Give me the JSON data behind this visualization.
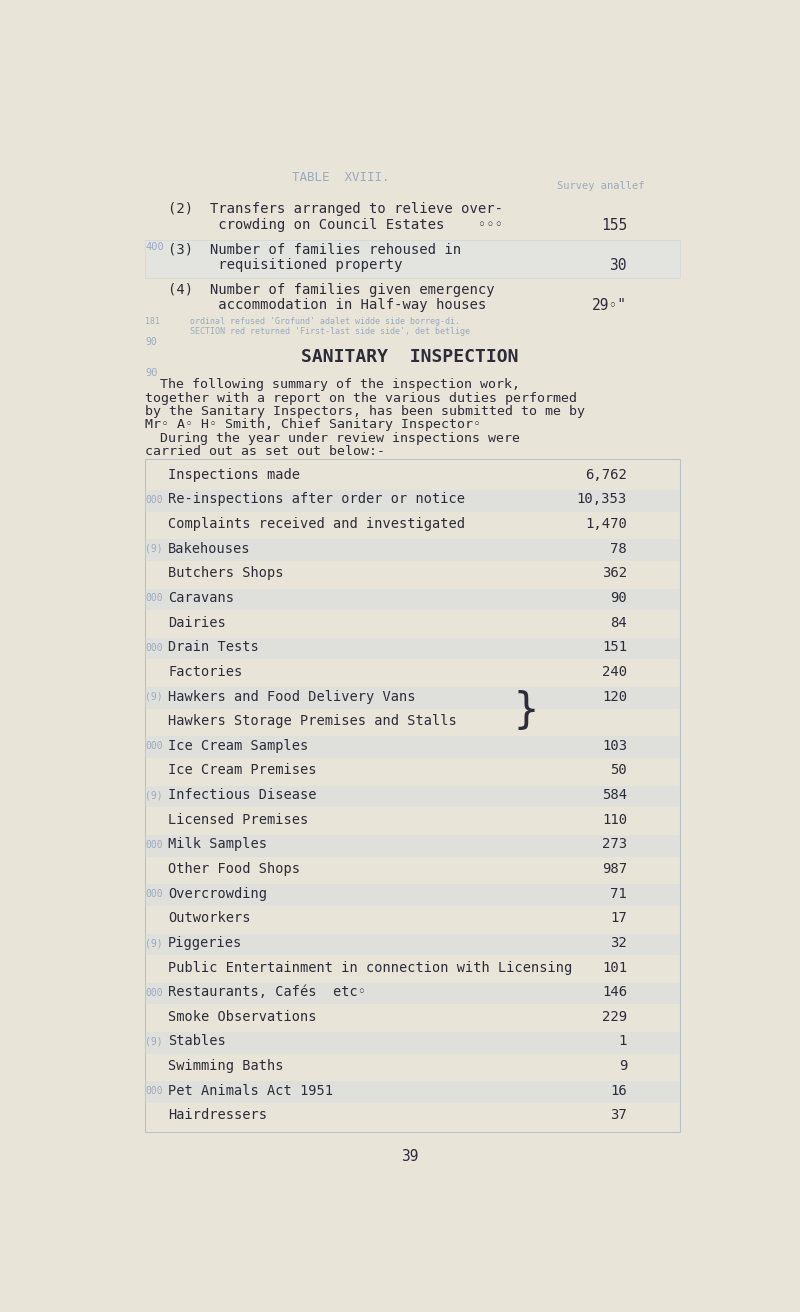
{
  "bg_color": "#e8e4d8",
  "text_color": "#2c2c3a",
  "faded_color": "#9aabbf",
  "page_number": "39",
  "top_header_faded": "TABLE  XVIII.",
  "top_right_faded": "Survey anallef",
  "section_title": "SANITARY  INSPECTION",
  "para1_lines": [
    "The following summary of the inspection work,",
    "together with a report on the various duties performed",
    "by the Sanitary Inspectors, has been submitted to me by",
    "Mr◦ A◦ H◦ Smith, Chief Sanitary Inspector◦"
  ],
  "para2_lines": [
    "During the year under review inspections were",
    "carried out as set out below:-"
  ],
  "inspection_items": [
    {
      "label": "Inspections made",
      "value": "6,762"
    },
    {
      "label": "Re-inspections after order or notice",
      "value": "10,353"
    },
    {
      "label": "Complaints received and investigated",
      "value": "1,470"
    },
    {
      "label": "Bakehouses",
      "value": "78"
    },
    {
      "label": "Butchers Shops",
      "value": "362"
    },
    {
      "label": "Caravans",
      "value": "90"
    },
    {
      "label": "Dairies",
      "value": "84"
    },
    {
      "label": "Drain Tests",
      "value": "151"
    },
    {
      "label": "Factories",
      "value": "240"
    },
    {
      "label": "Hawkers and Food Delivery Vans",
      "value": "120",
      "bracket": true
    },
    {
      "label": "Hawkers Storage Premises and Stalls",
      "value": "",
      "bracket_close": true
    },
    {
      "label": "Ice Cream Samples",
      "value": "103"
    },
    {
      "label": "Ice Cream Premises",
      "value": "50"
    },
    {
      "label": "Infectious Disease",
      "value": "584"
    },
    {
      "label": "Licensed Premises",
      "value": "110"
    },
    {
      "label": "Milk Samples",
      "value": "273"
    },
    {
      "label": "Other Food Shops",
      "value": "987"
    },
    {
      "label": "Overcrowding",
      "value": "71"
    },
    {
      "label": "Outworkers",
      "value": "17"
    },
    {
      "label": "Piggeries",
      "value": "32"
    },
    {
      "label": "Public Entertainment in connection with Licensing",
      "value": "101"
    },
    {
      "label": "Restaurants, Cafés  etc◦",
      "value": "146"
    },
    {
      "label": "Smoke Observations",
      "value": "229"
    },
    {
      "label": "Stables",
      "value": "1"
    },
    {
      "label": "Swimming Baths",
      "value": "9"
    },
    {
      "label": "Pet Animals Act 1951",
      "value": "16"
    },
    {
      "label": "Hairdressers",
      "value": "37"
    }
  ]
}
